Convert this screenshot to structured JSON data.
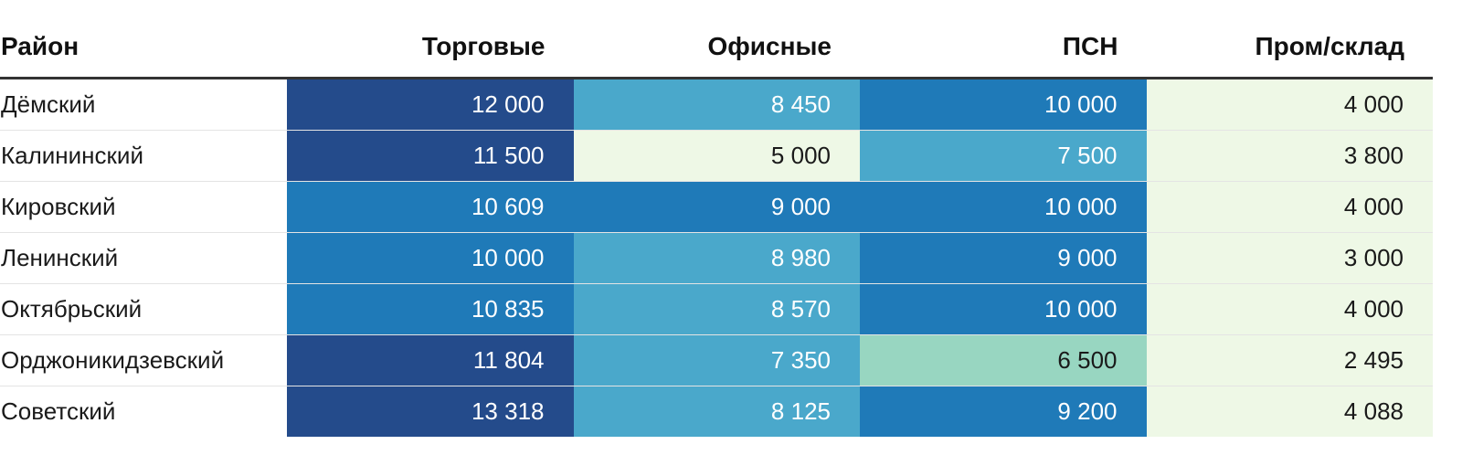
{
  "chart_data": {
    "type": "table",
    "columns": [
      "Район",
      "Торговые",
      "Офисные",
      "ПСН",
      "Пром/склад"
    ],
    "rows": [
      {
        "name": "Дёмский",
        "values": [
          12000,
          8450,
          10000,
          4000
        ],
        "labels": [
          "12 000",
          "8 450",
          "10 000",
          "4 000"
        ]
      },
      {
        "name": "Калининский",
        "values": [
          11500,
          5000,
          7500,
          3800
        ],
        "labels": [
          "11 500",
          "5 000",
          "7 500",
          "3 800"
        ]
      },
      {
        "name": "Кировский",
        "values": [
          10609,
          9000,
          10000,
          4000
        ],
        "labels": [
          "10 609",
          "9 000",
          "10 000",
          "4 000"
        ]
      },
      {
        "name": "Ленинский",
        "values": [
          10000,
          8980,
          9000,
          3000
        ],
        "labels": [
          "10 000",
          "8 980",
          "9 000",
          "3 000"
        ]
      },
      {
        "name": "Октябрьский",
        "values": [
          10835,
          8570,
          10000,
          4000
        ],
        "labels": [
          "10 835",
          "8 570",
          "10 000",
          "4 000"
        ]
      },
      {
        "name": "Орджоникидзевский",
        "values": [
          11804,
          7350,
          6500,
          2495
        ],
        "labels": [
          "11 804",
          "7 350",
          "6 500",
          "2 495"
        ]
      },
      {
        "name": "Советский",
        "values": [
          13318,
          8125,
          9200,
          4088
        ],
        "labels": [
          "13 318",
          "8 125",
          "9 200",
          "4 088"
        ]
      }
    ],
    "color_scale": [
      {
        "max": 5000,
        "bg": "#eef8e6",
        "fg": "#1a1a1a"
      },
      {
        "max": 7000,
        "bg": "#98d6c1",
        "fg": "#1a1a1a"
      },
      {
        "max": 8990,
        "bg": "#4aa8cb",
        "fg": "#ffffff"
      },
      {
        "max": 11000,
        "bg": "#1f7ab8",
        "fg": "#ffffff"
      },
      {
        "max": 99999,
        "bg": "#244b8b",
        "fg": "#ffffff"
      }
    ],
    "header_rule_color": "#333333"
  }
}
